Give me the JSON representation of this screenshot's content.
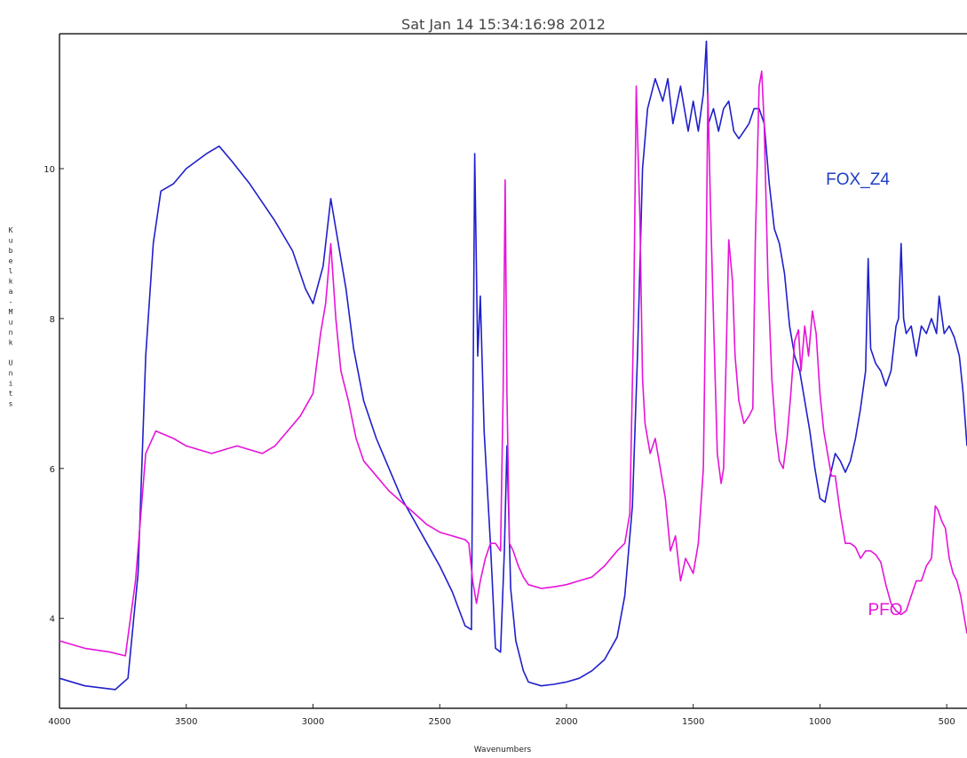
{
  "chart_data": {
    "type": "line",
    "title": "Sat Jan 14 15:34:16:98 2012",
    "xlabel": "Wavenumbers",
    "ylabel": "Kubelka-Munk Units",
    "xlim": [
      4000,
      420
    ],
    "ylim": [
      2.8,
      11.8
    ],
    "x_ticks": [
      4000,
      3500,
      3000,
      2500,
      2000,
      1500,
      1000,
      500
    ],
    "x_tick_labels": [
      "4000",
      "3500",
      "3000",
      "2500",
      "2000",
      "1500",
      "1000",
      "500"
    ],
    "y_ticks": [
      4,
      6,
      8,
      10
    ],
    "y_tick_labels": [
      "4",
      "6",
      "8",
      "10"
    ],
    "grid": false,
    "series": [
      {
        "name": "FOX_Z4",
        "color": "#1f1fcc",
        "points": [
          [
            4000,
            3.2
          ],
          [
            3900,
            3.1
          ],
          [
            3780,
            3.05
          ],
          [
            3730,
            3.2
          ],
          [
            3690,
            4.6
          ],
          [
            3660,
            7.5
          ],
          [
            3630,
            9.0
          ],
          [
            3600,
            9.7
          ],
          [
            3550,
            9.8
          ],
          [
            3500,
            10.0
          ],
          [
            3420,
            10.2
          ],
          [
            3370,
            10.3
          ],
          [
            3320,
            10.1
          ],
          [
            3250,
            9.8
          ],
          [
            3150,
            9.3
          ],
          [
            3080,
            8.9
          ],
          [
            3030,
            8.4
          ],
          [
            3000,
            8.2
          ],
          [
            2960,
            8.7
          ],
          [
            2930,
            9.6
          ],
          [
            2900,
            9.0
          ],
          [
            2870,
            8.4
          ],
          [
            2840,
            7.6
          ],
          [
            2800,
            6.9
          ],
          [
            2750,
            6.4
          ],
          [
            2700,
            6.0
          ],
          [
            2650,
            5.6
          ],
          [
            2600,
            5.3
          ],
          [
            2550,
            5.0
          ],
          [
            2500,
            4.7
          ],
          [
            2450,
            4.35
          ],
          [
            2400,
            3.9
          ],
          [
            2375,
            3.85
          ],
          [
            2362,
            10.2
          ],
          [
            2350,
            7.5
          ],
          [
            2340,
            8.3
          ],
          [
            2325,
            6.5
          ],
          [
            2300,
            5.0
          ],
          [
            2280,
            3.6
          ],
          [
            2260,
            3.55
          ],
          [
            2245,
            4.9
          ],
          [
            2235,
            6.3
          ],
          [
            2220,
            4.4
          ],
          [
            2200,
            3.7
          ],
          [
            2170,
            3.3
          ],
          [
            2150,
            3.15
          ],
          [
            2100,
            3.1
          ],
          [
            2050,
            3.12
          ],
          [
            2000,
            3.15
          ],
          [
            1950,
            3.2
          ],
          [
            1900,
            3.3
          ],
          [
            1850,
            3.45
          ],
          [
            1800,
            3.75
          ],
          [
            1770,
            4.3
          ],
          [
            1740,
            5.5
          ],
          [
            1720,
            7.5
          ],
          [
            1700,
            10.0
          ],
          [
            1680,
            10.8
          ],
          [
            1650,
            11.2
          ],
          [
            1620,
            10.9
          ],
          [
            1600,
            11.2
          ],
          [
            1580,
            10.6
          ],
          [
            1550,
            11.1
          ],
          [
            1520,
            10.5
          ],
          [
            1500,
            10.9
          ],
          [
            1480,
            10.5
          ],
          [
            1460,
            11.0
          ],
          [
            1448,
            11.7
          ],
          [
            1440,
            10.6
          ],
          [
            1420,
            10.8
          ],
          [
            1400,
            10.5
          ],
          [
            1380,
            10.8
          ],
          [
            1360,
            10.9
          ],
          [
            1340,
            10.5
          ],
          [
            1320,
            10.4
          ],
          [
            1300,
            10.5
          ],
          [
            1280,
            10.6
          ],
          [
            1260,
            10.8
          ],
          [
            1240,
            10.8
          ],
          [
            1220,
            10.6
          ],
          [
            1200,
            9.8
          ],
          [
            1180,
            9.2
          ],
          [
            1160,
            9.0
          ],
          [
            1140,
            8.6
          ],
          [
            1120,
            7.9
          ],
          [
            1100,
            7.5
          ],
          [
            1080,
            7.3
          ],
          [
            1060,
            6.9
          ],
          [
            1040,
            6.5
          ],
          [
            1020,
            6.0
          ],
          [
            1000,
            5.6
          ],
          [
            980,
            5.55
          ],
          [
            960,
            5.9
          ],
          [
            940,
            6.2
          ],
          [
            920,
            6.1
          ],
          [
            900,
            5.95
          ],
          [
            880,
            6.1
          ],
          [
            860,
            6.4
          ],
          [
            840,
            6.8
          ],
          [
            820,
            7.3
          ],
          [
            810,
            8.8
          ],
          [
            800,
            7.6
          ],
          [
            780,
            7.4
          ],
          [
            760,
            7.3
          ],
          [
            740,
            7.1
          ],
          [
            720,
            7.3
          ],
          [
            700,
            7.9
          ],
          [
            690,
            8.0
          ],
          [
            680,
            9.0
          ],
          [
            670,
            8.0
          ],
          [
            660,
            7.8
          ],
          [
            640,
            7.9
          ],
          [
            620,
            7.5
          ],
          [
            600,
            7.9
          ],
          [
            580,
            7.8
          ],
          [
            560,
            8.0
          ],
          [
            540,
            7.8
          ],
          [
            530,
            8.3
          ],
          [
            510,
            7.8
          ],
          [
            490,
            7.9
          ],
          [
            470,
            7.75
          ],
          [
            450,
            7.5
          ],
          [
            435,
            7.0
          ],
          [
            420,
            6.3
          ]
        ]
      },
      {
        "name": "PFO",
        "color": "#e614d9",
        "points": [
          [
            4000,
            3.7
          ],
          [
            3900,
            3.6
          ],
          [
            3800,
            3.55
          ],
          [
            3740,
            3.5
          ],
          [
            3700,
            4.5
          ],
          [
            3660,
            6.2
          ],
          [
            3620,
            6.5
          ],
          [
            3550,
            6.4
          ],
          [
            3500,
            6.3
          ],
          [
            3400,
            6.2
          ],
          [
            3300,
            6.3
          ],
          [
            3200,
            6.2
          ],
          [
            3150,
            6.3
          ],
          [
            3100,
            6.5
          ],
          [
            3050,
            6.7
          ],
          [
            3000,
            7.0
          ],
          [
            2970,
            7.8
          ],
          [
            2950,
            8.2
          ],
          [
            2930,
            9.0
          ],
          [
            2910,
            8.0
          ],
          [
            2890,
            7.3
          ],
          [
            2860,
            6.9
          ],
          [
            2830,
            6.4
          ],
          [
            2800,
            6.1
          ],
          [
            2750,
            5.9
          ],
          [
            2700,
            5.7
          ],
          [
            2650,
            5.55
          ],
          [
            2600,
            5.4
          ],
          [
            2550,
            5.25
          ],
          [
            2500,
            5.15
          ],
          [
            2450,
            5.1
          ],
          [
            2400,
            5.05
          ],
          [
            2385,
            5.0
          ],
          [
            2370,
            4.5
          ],
          [
            2355,
            4.2
          ],
          [
            2340,
            4.5
          ],
          [
            2320,
            4.8
          ],
          [
            2300,
            5.0
          ],
          [
            2280,
            5.0
          ],
          [
            2260,
            4.9
          ],
          [
            2250,
            7.0
          ],
          [
            2242,
            9.85
          ],
          [
            2235,
            7.0
          ],
          [
            2225,
            5.0
          ],
          [
            2210,
            4.9
          ],
          [
            2190,
            4.7
          ],
          [
            2170,
            4.55
          ],
          [
            2150,
            4.45
          ],
          [
            2100,
            4.4
          ],
          [
            2050,
            4.42
          ],
          [
            2000,
            4.45
          ],
          [
            1950,
            4.5
          ],
          [
            1900,
            4.55
          ],
          [
            1850,
            4.7
          ],
          [
            1800,
            4.9
          ],
          [
            1770,
            5.0
          ],
          [
            1750,
            5.4
          ],
          [
            1735,
            8.0
          ],
          [
            1725,
            11.1
          ],
          [
            1710,
            9.3
          ],
          [
            1700,
            7.2
          ],
          [
            1690,
            6.6
          ],
          [
            1670,
            6.2
          ],
          [
            1650,
            6.4
          ],
          [
            1630,
            6.0
          ],
          [
            1610,
            5.6
          ],
          [
            1590,
            4.9
          ],
          [
            1570,
            5.1
          ],
          [
            1550,
            4.5
          ],
          [
            1530,
            4.8
          ],
          [
            1500,
            4.6
          ],
          [
            1480,
            5.0
          ],
          [
            1460,
            6.0
          ],
          [
            1450,
            8.5
          ],
          [
            1442,
            11.0
          ],
          [
            1432,
            9.5
          ],
          [
            1420,
            8.0
          ],
          [
            1405,
            6.2
          ],
          [
            1390,
            5.8
          ],
          [
            1380,
            6.0
          ],
          [
            1370,
            7.5
          ],
          [
            1360,
            9.05
          ],
          [
            1345,
            8.5
          ],
          [
            1335,
            7.5
          ],
          [
            1320,
            6.9
          ],
          [
            1300,
            6.6
          ],
          [
            1280,
            6.7
          ],
          [
            1265,
            6.8
          ],
          [
            1255,
            9.0
          ],
          [
            1240,
            11.1
          ],
          [
            1230,
            11.3
          ],
          [
            1220,
            10.6
          ],
          [
            1205,
            8.5
          ],
          [
            1190,
            7.2
          ],
          [
            1175,
            6.5
          ],
          [
            1160,
            6.1
          ],
          [
            1145,
            6.0
          ],
          [
            1130,
            6.4
          ],
          [
            1115,
            7.0
          ],
          [
            1100,
            7.7
          ],
          [
            1085,
            7.85
          ],
          [
            1075,
            7.3
          ],
          [
            1060,
            7.9
          ],
          [
            1045,
            7.5
          ],
          [
            1030,
            8.1
          ],
          [
            1015,
            7.8
          ],
          [
            1000,
            7.0
          ],
          [
            985,
            6.5
          ],
          [
            970,
            6.2
          ],
          [
            955,
            5.9
          ],
          [
            940,
            5.9
          ],
          [
            920,
            5.4
          ],
          [
            900,
            5.0
          ],
          [
            880,
            5.0
          ],
          [
            860,
            4.95
          ],
          [
            840,
            4.8
          ],
          [
            820,
            4.9
          ],
          [
            800,
            4.9
          ],
          [
            780,
            4.85
          ],
          [
            760,
            4.75
          ],
          [
            740,
            4.45
          ],
          [
            720,
            4.2
          ],
          [
            700,
            4.1
          ],
          [
            680,
            4.05
          ],
          [
            660,
            4.1
          ],
          [
            640,
            4.3
          ],
          [
            620,
            4.5
          ],
          [
            600,
            4.5
          ],
          [
            580,
            4.7
          ],
          [
            560,
            4.8
          ],
          [
            545,
            5.5
          ],
          [
            535,
            5.45
          ],
          [
            520,
            5.3
          ],
          [
            505,
            5.2
          ],
          [
            490,
            4.8
          ],
          [
            475,
            4.6
          ],
          [
            460,
            4.5
          ],
          [
            445,
            4.3
          ],
          [
            430,
            4.0
          ],
          [
            420,
            3.8
          ]
        ]
      }
    ],
    "labels": {
      "fox": {
        "text": "FOX_Z4",
        "color": "#1f3ec7"
      },
      "pfo": {
        "text": "PFO",
        "color": "#e614d9"
      }
    }
  }
}
